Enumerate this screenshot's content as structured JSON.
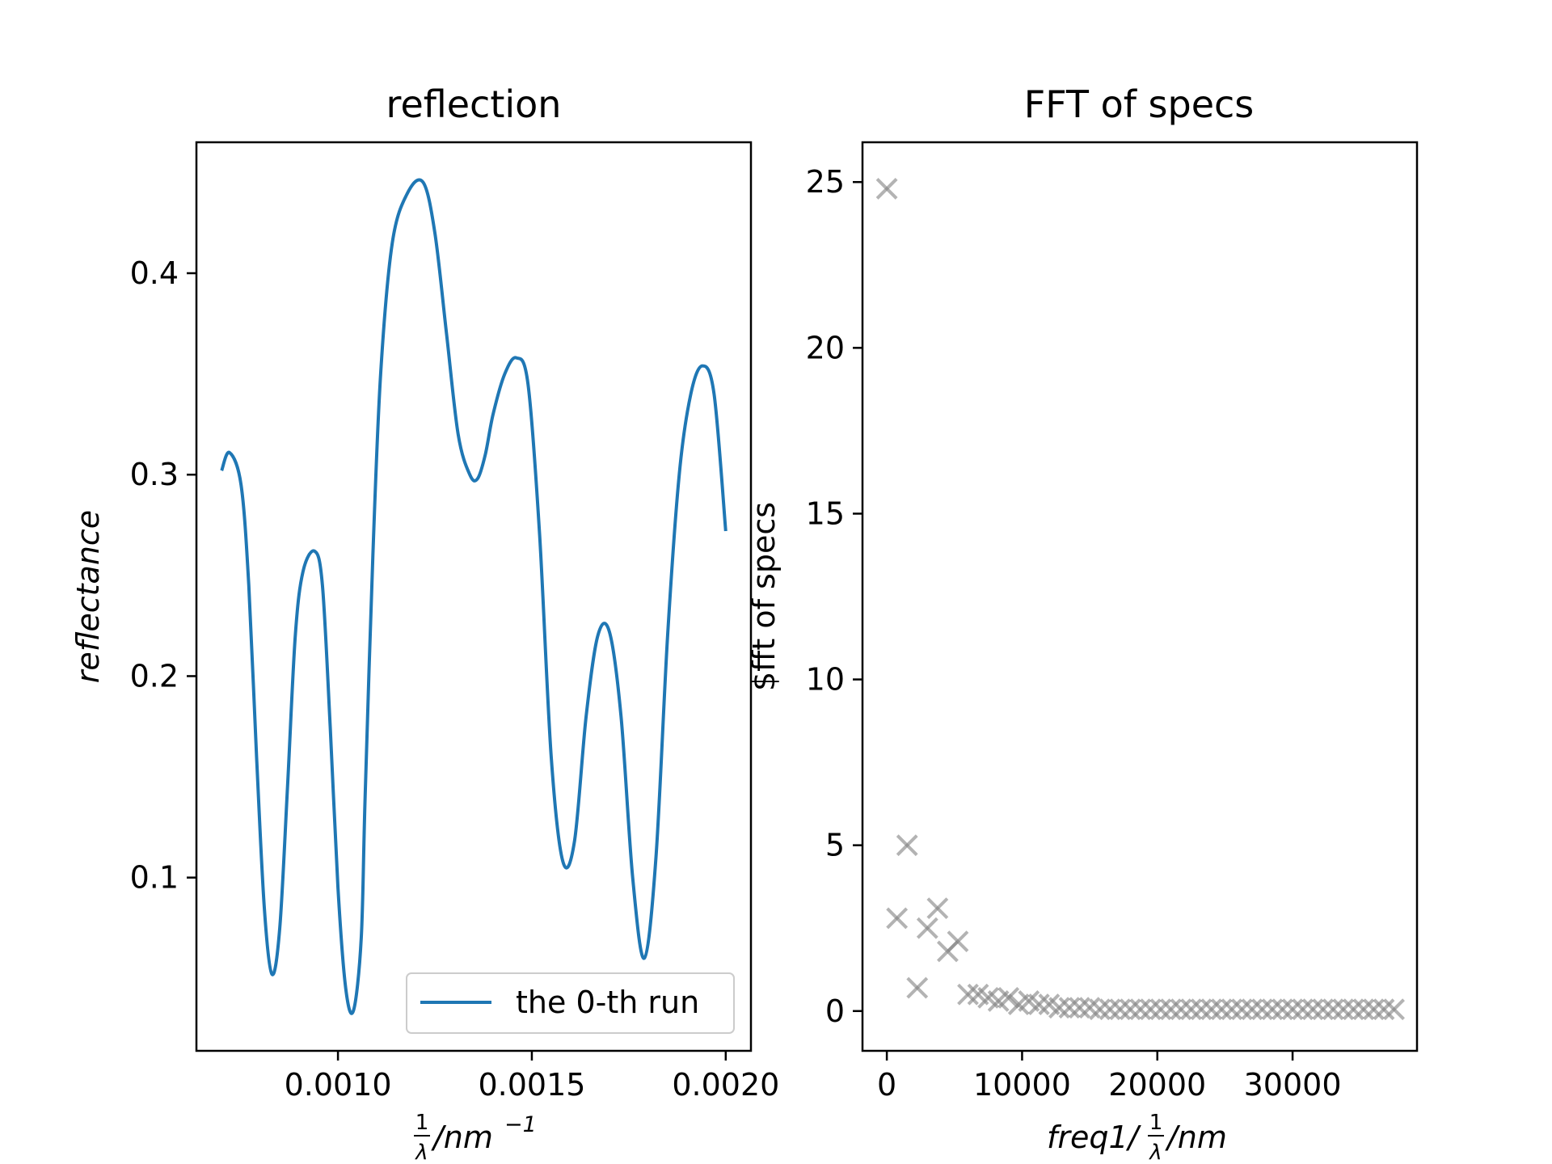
{
  "chart_data": [
    {
      "type": "line",
      "title": "reflection",
      "xlabel": "1/λ /nm⁻¹",
      "xlabel_parts": {
        "num": "1",
        "den": "λ",
        "unit": "/nm",
        "sup": "−1"
      },
      "ylabel": "reflectance",
      "xlim": [
        0.000635,
        0.002065
      ],
      "ylim": [
        0.014,
        0.465
      ],
      "xticks": [
        0.001,
        0.0015,
        0.002
      ],
      "xtick_labels": [
        "0.0010",
        "0.0015",
        "0.0020"
      ],
      "yticks": [
        0.1,
        0.2,
        0.3,
        0.4
      ],
      "ytick_labels": [
        "0.1",
        "0.2",
        "0.3",
        "0.4"
      ],
      "legend_placement": "lower right",
      "grid": false,
      "series": [
        {
          "name": "the 0-th run",
          "color": "#1f77b4",
          "x": [
            0.0007,
            0.00072,
            0.00075,
            0.00077,
            0.00079,
            0.00081,
            0.00083,
            0.00085,
            0.00087,
            0.00089,
            0.00091,
            0.00094,
            0.00096,
            0.00098,
            0.001,
            0.00102,
            0.00104,
            0.00106,
            0.00107,
            0.00109,
            0.00111,
            0.00114,
            0.00118,
            0.00122,
            0.00125,
            0.00128,
            0.00131,
            0.00134,
            0.00136,
            0.00138,
            0.0014,
            0.00143,
            0.00146,
            0.00149,
            0.00152,
            0.00155,
            0.00158,
            0.00161,
            0.00164,
            0.00167,
            0.0017,
            0.00173,
            0.00176,
            0.00179,
            0.00182,
            0.00185,
            0.00188,
            0.00191,
            0.00194,
            0.00197,
            0.002
          ],
          "y": [
            0.302,
            0.311,
            0.295,
            0.245,
            0.16,
            0.085,
            0.052,
            0.075,
            0.145,
            0.22,
            0.252,
            0.262,
            0.245,
            0.175,
            0.095,
            0.045,
            0.034,
            0.07,
            0.14,
            0.26,
            0.35,
            0.415,
            0.44,
            0.445,
            0.42,
            0.37,
            0.32,
            0.3,
            0.298,
            0.31,
            0.33,
            0.35,
            0.358,
            0.345,
            0.27,
            0.16,
            0.108,
            0.118,
            0.18,
            0.22,
            0.222,
            0.18,
            0.1,
            0.06,
            0.11,
            0.22,
            0.3,
            0.34,
            0.354,
            0.34,
            0.272
          ]
        }
      ]
    },
    {
      "type": "scatter",
      "title": "FFT of specs",
      "xlabel": "freq1/(1/λ)/nm",
      "xlabel_parts": {
        "pre": "freq1/",
        "num": "1",
        "den": "λ",
        "unit": "/nm"
      },
      "ylabel": "$fft of specs",
      "xlim": [
        -1800,
        39200
      ],
      "ylim": [
        -1.2,
        26.2
      ],
      "xticks": [
        0,
        10000,
        20000,
        30000
      ],
      "xtick_labels": [
        "0",
        "10000",
        "20000",
        "30000"
      ],
      "yticks": [
        0,
        5,
        10,
        15,
        20,
        25
      ],
      "ytick_labels": [
        "0",
        "5",
        "10",
        "15",
        "20",
        "25"
      ],
      "marker": "x",
      "color": "#808080",
      "grid": false,
      "series": [
        {
          "x": [
            0,
            750,
            1500,
            2250,
            3000,
            3750,
            4500,
            5250,
            6000,
            6750,
            7500,
            8250,
            9000,
            9750,
            10500,
            11250,
            12000,
            12750,
            13500,
            14250,
            15000,
            15750,
            16500,
            17250,
            18000,
            18750,
            19500,
            20250,
            21000,
            21750,
            22500,
            23250,
            24000,
            24750,
            25500,
            26250,
            27000,
            27750,
            28500,
            29250,
            30000,
            30750,
            31500,
            32250,
            33000,
            33750,
            34500,
            35250,
            36000,
            36750,
            37500
          ],
          "y": [
            24.8,
            2.8,
            5.0,
            0.7,
            2.5,
            3.1,
            1.8,
            2.1,
            0.5,
            0.5,
            0.4,
            0.3,
            0.4,
            0.2,
            0.3,
            0.2,
            0.2,
            0.1,
            0.1,
            0.1,
            0.1,
            0.05,
            0.05,
            0.05,
            0.05,
            0.05,
            0.05,
            0.05,
            0.05,
            0.05,
            0.05,
            0.05,
            0.05,
            0.05,
            0.05,
            0.05,
            0.05,
            0.05,
            0.05,
            0.05,
            0.05,
            0.05,
            0.05,
            0.05,
            0.05,
            0.05,
            0.05,
            0.05,
            0.05,
            0.05,
            0.05
          ]
        }
      ]
    }
  ]
}
